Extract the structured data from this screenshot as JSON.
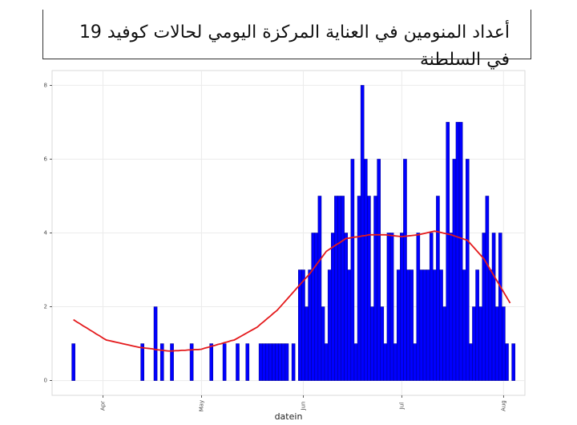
{
  "chart_data": {
    "type": "bar",
    "title": "أعداد المنومين في العناية المركزة اليومي لحالات كوفيد 19 في السلطنة",
    "x_label": "datein",
    "categories": [
      null,
      null,
      null,
      null,
      null,
      null,
      null,
      null,
      null,
      null,
      null,
      null,
      null,
      null,
      null,
      "Apr",
      null,
      null,
      null,
      null,
      null,
      null,
      null,
      null,
      null,
      null,
      null,
      null,
      null,
      null,
      null,
      null,
      null,
      null,
      null,
      null,
      null,
      null,
      null,
      null,
      null,
      null,
      null,
      null,
      null,
      "May",
      null,
      null,
      null,
      null,
      null,
      null,
      null,
      null,
      null,
      null,
      null,
      null,
      null,
      null,
      null,
      null,
      null,
      null,
      null,
      null,
      null,
      null,
      null,
      null,
      null,
      null,
      null,
      null,
      null,
      null,
      "Jun",
      null,
      null,
      null,
      null,
      null,
      null,
      null,
      null,
      null,
      null,
      null,
      null,
      null,
      null,
      null,
      null,
      null,
      null,
      null,
      null,
      null,
      null,
      null,
      null,
      null,
      null,
      null,
      null,
      null,
      "Jul",
      null,
      null,
      null,
      null,
      null,
      null,
      null,
      null,
      null,
      null,
      null,
      null,
      null,
      null,
      null,
      null,
      null,
      null,
      null,
      null,
      null,
      null,
      null,
      null,
      null,
      null,
      null,
      null,
      null,
      null,
      "Aug",
      null,
      null,
      null,
      null,
      null,
      null
    ],
    "values": [
      0,
      0,
      0,
      0,
      0,
      0,
      1,
      0,
      0,
      0,
      0,
      0,
      0,
      0,
      0,
      0,
      0,
      0,
      0,
      0,
      0,
      0,
      0,
      0,
      0,
      0,
      0,
      1,
      0,
      0,
      0,
      2,
      0,
      1,
      0,
      0,
      1,
      0,
      0,
      0,
      0,
      0,
      1,
      0,
      0,
      0,
      0,
      0,
      1,
      0,
      0,
      0,
      1,
      0,
      0,
      0,
      1,
      0,
      0,
      1,
      0,
      0,
      0,
      1,
      1,
      1,
      1,
      1,
      1,
      1,
      1,
      1,
      0,
      1,
      0,
      3,
      3,
      2,
      3,
      4,
      4,
      5,
      2,
      1,
      3,
      4,
      5,
      5,
      5,
      4,
      3,
      6,
      1,
      5,
      8,
      6,
      5,
      2,
      5,
      6,
      2,
      1,
      4,
      4,
      1,
      3,
      4,
      6,
      3,
      3,
      1,
      4,
      3,
      3,
      3,
      4,
      3,
      5,
      3,
      2,
      7,
      4,
      6,
      7,
      7,
      3,
      6,
      1,
      2,
      3,
      2,
      4,
      5,
      3,
      4,
      2,
      4,
      2,
      1,
      0,
      1,
      0,
      0,
      0
    ],
    "color": "#0000ff",
    "smooth": {
      "color": "#e41a1c",
      "values": [
        null,
        null,
        null,
        null,
        null,
        null,
        1.65,
        1.59,
        1.54,
        1.48,
        1.43,
        1.37,
        1.32,
        1.26,
        1.21,
        1.15,
        1.1,
        1.08,
        1.06,
        1.04,
        1.02,
        1.0,
        0.98,
        0.96,
        0.94,
        0.92,
        0.9,
        0.89,
        0.88,
        0.87,
        0.86,
        0.84,
        0.83,
        0.82,
        0.81,
        0.8,
        0.8,
        0.81,
        0.81,
        0.82,
        0.82,
        0.83,
        0.83,
        0.84,
        0.84,
        0.85,
        0.88,
        0.9,
        0.93,
        0.95,
        0.98,
        1.0,
        1.03,
        1.05,
        1.08,
        1.1,
        1.15,
        1.2,
        1.25,
        1.3,
        1.35,
        1.4,
        1.45,
        1.53,
        1.6,
        1.68,
        1.75,
        1.83,
        1.9,
        2.0,
        2.1,
        2.2,
        2.3,
        2.4,
        2.5,
        2.6,
        2.7,
        2.8,
        2.9,
        3.02,
        3.14,
        3.26,
        3.38,
        3.5,
        3.56,
        3.62,
        3.68,
        3.73,
        3.79,
        3.85,
        3.86,
        3.88,
        3.89,
        3.9,
        3.92,
        3.93,
        3.95,
        3.95,
        3.95,
        3.95,
        3.95,
        3.95,
        3.94,
        3.93,
        3.92,
        3.91,
        3.9,
        3.91,
        3.92,
        3.93,
        3.94,
        3.95,
        3.97,
        3.99,
        4.01,
        4.03,
        4.05,
        4.03,
        4.01,
        3.99,
        3.97,
        3.95,
        3.92,
        3.89,
        3.86,
        3.83,
        3.8,
        3.7,
        3.6,
        3.5,
        3.4,
        3.3,
        3.15,
        3.0,
        2.85,
        2.7,
        2.55,
        2.4,
        2.25,
        2.1,
        null,
        null,
        null,
        null
      ]
    },
    "ylim": [
      -0.4,
      8.4
    ],
    "yticks": [
      0,
      2,
      4,
      6,
      8
    ],
    "grid": true
  }
}
